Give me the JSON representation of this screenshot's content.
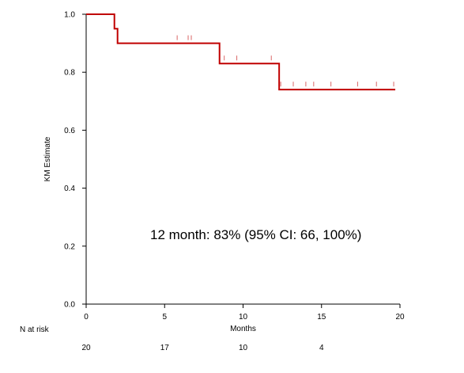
{
  "chart_data": {
    "type": "line",
    "xlabel": "Months",
    "ylabel": "KM Estimate",
    "xlim": [
      0,
      20
    ],
    "ylim": [
      0,
      1.0
    ],
    "x_ticks": [
      "0",
      "5",
      "10",
      "15",
      "20"
    ],
    "y_ticks": [
      "0.0",
      "0.2",
      "0.4",
      "0.6",
      "0.8",
      "1.0"
    ],
    "grid": false,
    "series": [
      {
        "color": "#c00000",
        "step_x": [
          0,
          1.8,
          1.8,
          2.0,
          2.0,
          8.5,
          8.5,
          12.3,
          12.3,
          19.7
        ],
        "step_y": [
          1.0,
          1.0,
          0.95,
          0.95,
          0.9,
          0.9,
          0.83,
          0.83,
          0.74,
          0.74
        ],
        "censor": [
          {
            "x": 5.8,
            "y": 0.9
          },
          {
            "x": 6.5,
            "y": 0.9
          },
          {
            "x": 6.7,
            "y": 0.9
          },
          {
            "x": 8.8,
            "y": 0.83
          },
          {
            "x": 9.6,
            "y": 0.83
          },
          {
            "x": 11.8,
            "y": 0.83
          },
          {
            "x": 12.4,
            "y": 0.74
          },
          {
            "x": 13.2,
            "y": 0.74
          },
          {
            "x": 14.0,
            "y": 0.74
          },
          {
            "x": 14.5,
            "y": 0.74
          },
          {
            "x": 15.6,
            "y": 0.74
          },
          {
            "x": 17.3,
            "y": 0.74
          },
          {
            "x": 18.5,
            "y": 0.74
          },
          {
            "x": 19.6,
            "y": 0.74
          }
        ]
      }
    ],
    "annotation": "12 month:  83% (95% CI: 66, 100%)",
    "risk_table": {
      "label": "N at risk",
      "x": [
        0,
        5,
        10,
        15
      ],
      "values": [
        "20",
        "17",
        "10",
        "4"
      ]
    }
  }
}
